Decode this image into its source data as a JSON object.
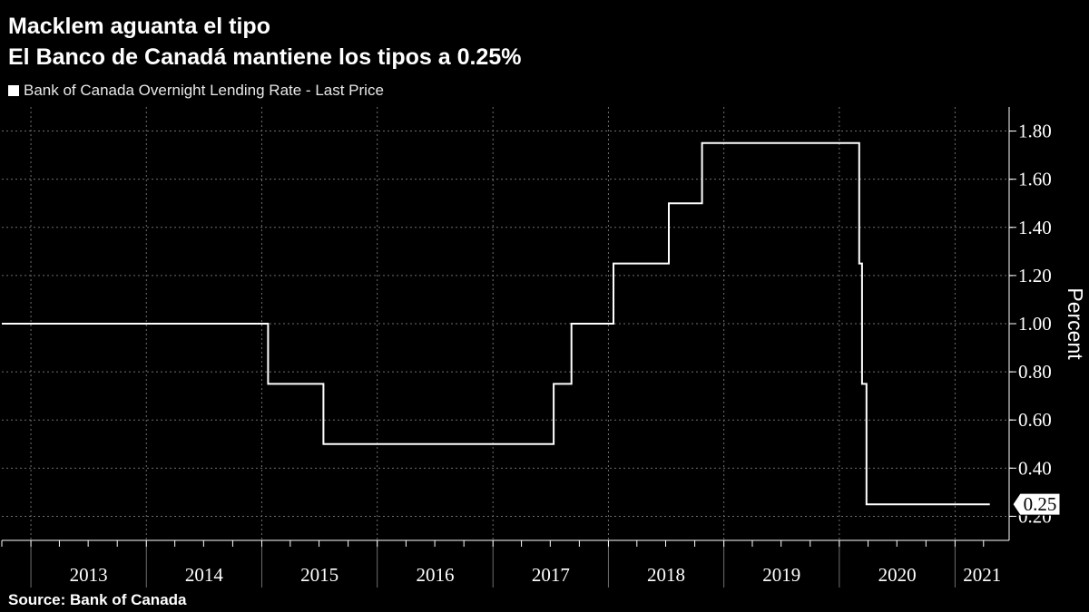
{
  "title_line1": "Macklem aguanta el tipo",
  "title_line2": "El Banco de Canadá mantiene los tipos a 0.25%",
  "legend_label": "Bank of Canada Overnight Lending Rate - Last Price",
  "source": "Source:  Bank of Canada",
  "colors": {
    "background": "#000000",
    "line": "#ffffff",
    "grid": "#6e6e6e"
  },
  "chart_data": {
    "type": "line",
    "step": true,
    "series": [
      {
        "name": "Bank of Canada Overnight Lending Rate - Last Price",
        "points": [
          [
            "2012-10-01",
            1.0
          ],
          [
            "2015-01-21",
            0.75
          ],
          [
            "2015-07-15",
            0.5
          ],
          [
            "2017-07-12",
            0.75
          ],
          [
            "2017-09-06",
            1.0
          ],
          [
            "2018-01-17",
            1.25
          ],
          [
            "2018-07-11",
            1.5
          ],
          [
            "2018-10-24",
            1.75
          ],
          [
            "2020-03-04",
            1.25
          ],
          [
            "2020-03-13",
            0.75
          ],
          [
            "2020-03-27",
            0.25
          ],
          [
            "2021-04-21",
            0.25
          ]
        ]
      }
    ],
    "ylabel": "Percent",
    "y_axis_position": "right",
    "ylim": [
      0.1,
      1.9
    ],
    "yticks": [
      "0.20",
      "0.40",
      "0.60",
      "0.80",
      "1.00",
      "1.20",
      "1.40",
      "1.60",
      "1.80"
    ],
    "xlim": [
      "2012-10-01",
      "2021-06-21"
    ],
    "xticks": [
      "2013",
      "2014",
      "2015",
      "2016",
      "2017",
      "2018",
      "2019",
      "2020",
      "2021"
    ],
    "last_value_label": "0.25",
    "grid": true
  }
}
